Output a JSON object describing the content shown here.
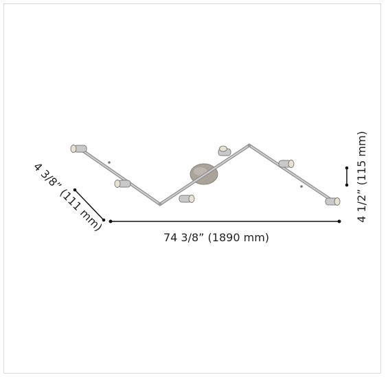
{
  "dimensions": {
    "width_label": "74 3/8” (1890 mm)",
    "height_label": "4 1/2” (115 mm)",
    "depth_label": "4 3/8” (111 mm)"
  },
  "colors": {
    "track": "#b9b9b9",
    "track_edge": "#8f8f8f",
    "canopy": "#a9a39a",
    "spot_body": "#c9c9c9",
    "spot_face": "#e8e2d2",
    "dimension_line": "#111111",
    "frame_border": "#d7d7d7"
  }
}
